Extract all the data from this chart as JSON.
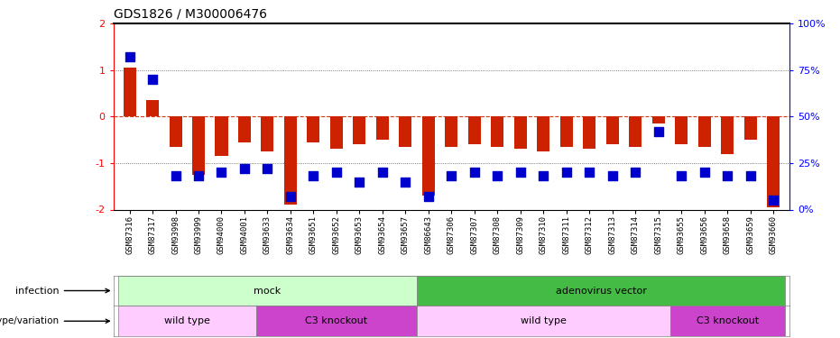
{
  "title": "GDS1826 / M300006476",
  "samples": [
    "GSM87316",
    "GSM87317",
    "GSM93998",
    "GSM93999",
    "GSM94000",
    "GSM94001",
    "GSM93633",
    "GSM93634",
    "GSM93651",
    "GSM93652",
    "GSM93653",
    "GSM93654",
    "GSM93657",
    "GSM86643",
    "GSM87306",
    "GSM87307",
    "GSM87308",
    "GSM87309",
    "GSM87310",
    "GSM87311",
    "GSM87312",
    "GSM87313",
    "GSM87314",
    "GSM87315",
    "GSM93655",
    "GSM93656",
    "GSM93658",
    "GSM93659",
    "GSM93660"
  ],
  "log2_ratio": [
    1.05,
    0.35,
    -0.65,
    -1.25,
    -0.85,
    -0.55,
    -0.75,
    -1.9,
    -0.55,
    -0.7,
    -0.6,
    -0.5,
    -0.65,
    -1.7,
    -0.65,
    -0.6,
    -0.65,
    -0.7,
    -0.75,
    -0.65,
    -0.7,
    -0.6,
    -0.65,
    -0.15,
    -0.6,
    -0.65,
    -0.8,
    -0.5,
    -1.95
  ],
  "percentile_rank": [
    82,
    70,
    18,
    18,
    20,
    22,
    22,
    7,
    18,
    20,
    15,
    20,
    15,
    7,
    18,
    20,
    18,
    20,
    18,
    20,
    20,
    18,
    20,
    42,
    18,
    20,
    18,
    18,
    5
  ],
  "infection_groups": [
    {
      "label": "mock",
      "start": 0,
      "end": 12,
      "color": "#ccffcc"
    },
    {
      "label": "adenovirus vector",
      "start": 13,
      "end": 28,
      "color": "#44bb44"
    }
  ],
  "genotype_groups": [
    {
      "label": "wild type",
      "start": 0,
      "end": 5,
      "color": "#ffccff"
    },
    {
      "label": "C3 knockout",
      "start": 6,
      "end": 12,
      "color": "#cc44cc"
    },
    {
      "label": "wild type",
      "start": 13,
      "end": 23,
      "color": "#ffccff"
    },
    {
      "label": "C3 knockout",
      "start": 24,
      "end": 28,
      "color": "#cc44cc"
    }
  ],
  "ylim": [
    -2,
    2
  ],
  "bar_color": "#cc2200",
  "dot_color": "#0000cc",
  "zero_line_color": "#cc2200",
  "ref_line_color": "#555555"
}
